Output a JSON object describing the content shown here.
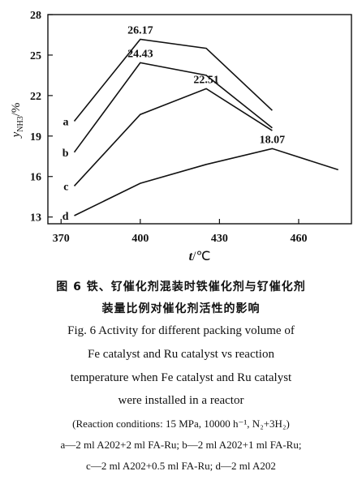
{
  "chart_data": {
    "type": "line",
    "x_label_var": "t",
    "x_label_unit": "/℃",
    "y_label_var": "y",
    "y_label_sub": "NH3",
    "y_label_unit": "/%",
    "x_ticks": [
      370,
      400,
      430,
      460
    ],
    "y_ticks": [
      13,
      16,
      19,
      22,
      25,
      28
    ],
    "xlim": [
      365,
      480
    ],
    "ylim": [
      12.5,
      28
    ],
    "grid": false,
    "series": [
      {
        "name": "a",
        "x": [
          375,
          400,
          425,
          450
        ],
        "y": [
          20.1,
          26.17,
          25.5,
          20.9
        ]
      },
      {
        "name": "b",
        "x": [
          375,
          400,
          425,
          450
        ],
        "y": [
          17.8,
          24.43,
          23.5,
          19.6
        ]
      },
      {
        "name": "c",
        "x": [
          375,
          400,
          425,
          450
        ],
        "y": [
          15.3,
          20.6,
          22.51,
          19.4
        ]
      },
      {
        "name": "d",
        "x": [
          375,
          400,
          425,
          450,
          475
        ],
        "y": [
          13.1,
          15.5,
          16.9,
          18.07,
          16.5
        ]
      }
    ],
    "annotations": [
      {
        "text": "26.17",
        "x": 400,
        "y": 26.17
      },
      {
        "text": "24.43",
        "x": 400,
        "y": 24.43
      },
      {
        "text": "22.51",
        "x": 425,
        "y": 22.51
      },
      {
        "text": "18.07",
        "x": 450,
        "y": 18.07
      }
    ]
  },
  "caption": {
    "cn_line1": "图 6  铁、钌催化剂混装时铁催化剂与钌催化剂",
    "cn_line2": "装量比例对催化剂活性的影响",
    "en_line1": "Fig. 6   Activity for different packing volume of",
    "en_line2": "Fe catalyst and Ru catalyst vs reaction",
    "en_line3": "temperature when Fe catalyst and Ru catalyst",
    "en_line4": "were installed in a reactor",
    "conditions": "(Reaction conditions: 15 MPa, 10000 h⁻¹, N₂+3H₂)",
    "legend_line1": "a—2 ml A202+2 ml FA-Ru;  b—2 ml A202+1 ml FA-Ru;",
    "legend_line2": "c—2 ml A202+0.5 ml FA-Ru; d—2 ml A202"
  }
}
